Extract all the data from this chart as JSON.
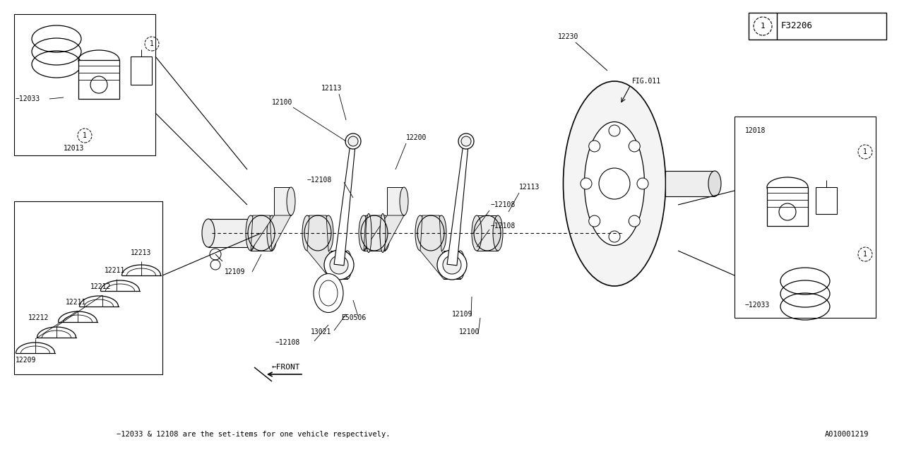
{
  "bg_color": "#ffffff",
  "line_color": "#000000",
  "text_color": "#000000",
  "fig_label": "F32206",
  "bottom_note": "−12033 & 12108 are the set-items for one vehicle respectively.",
  "bottom_code": "A010001219"
}
